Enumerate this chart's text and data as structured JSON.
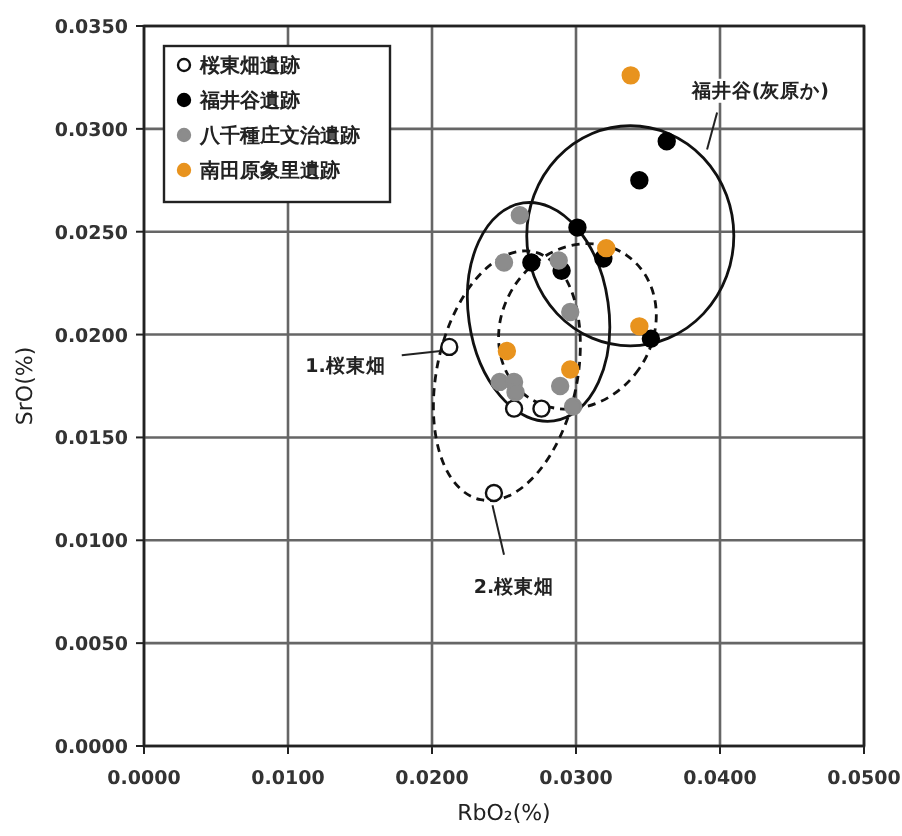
{
  "chart_data": {
    "type": "scatter",
    "xlabel": "RbO₂(%)",
    "ylabel": "SrO(%)",
    "xlim": [
      0,
      0.05
    ],
    "ylim": [
      0,
      0.035
    ],
    "xticks": [
      {
        "value": 0,
        "label": "0.0000"
      },
      {
        "value": 0.01,
        "label": "0.0100"
      },
      {
        "value": 0.02,
        "label": "0.0200"
      },
      {
        "value": 0.03,
        "label": "0.0300"
      },
      {
        "value": 0.04,
        "label": "0.0400"
      },
      {
        "value": 0.05,
        "label": "0.0500"
      }
    ],
    "yticks": [
      {
        "value": 0,
        "label": "0.0000"
      },
      {
        "value": 0.005,
        "label": "0.0050"
      },
      {
        "value": 0.01,
        "label": "0.0100"
      },
      {
        "value": 0.015,
        "label": "0.0150"
      },
      {
        "value": 0.02,
        "label": "0.0200"
      },
      {
        "value": 0.025,
        "label": "0.0250"
      },
      {
        "value": 0.03,
        "label": "0.0300"
      },
      {
        "value": 0.035,
        "label": "0.0350"
      }
    ],
    "grid": true,
    "legend": "top left",
    "marker": "circle",
    "series": [
      {
        "name": "桜東畑遺跡",
        "color": "#ffffff",
        "x": [
          0.0212,
          0.0243,
          0.0257,
          0.0276
        ],
        "values": [
          0.0194,
          0.0123,
          0.0164,
          0.0164
        ]
      },
      {
        "name": "福井谷遺跡",
        "color": "#000000",
        "x": [
          0.0363,
          0.0344,
          0.0301,
          0.0269,
          0.029,
          0.0319,
          0.0352
        ],
        "values": [
          0.0294,
          0.0275,
          0.0252,
          0.0235,
          0.0231,
          0.0237,
          0.0198
        ]
      },
      {
        "name": "八千種庄文治遺跡",
        "color": "#8c8c8c",
        "x": [
          0.0261,
          0.025,
          0.0288,
          0.0296,
          0.0247,
          0.0257,
          0.0258,
          0.0289,
          0.0298
        ],
        "values": [
          0.0258,
          0.0235,
          0.0236,
          0.0211,
          0.0177,
          0.0177,
          0.0172,
          0.0175,
          0.0165
        ]
      },
      {
        "name": "南田原象里遺跡",
        "color": "#e8931e",
        "x": [
          0.0338,
          0.0321,
          0.0344,
          0.0296,
          0.0252
        ],
        "values": [
          0.0326,
          0.0242,
          0.0204,
          0.0183,
          0.0192
        ]
      }
    ],
    "annotations": [
      "1.桜東畑",
      "2.桜東畑",
      "福井谷(灰原か)"
    ]
  }
}
